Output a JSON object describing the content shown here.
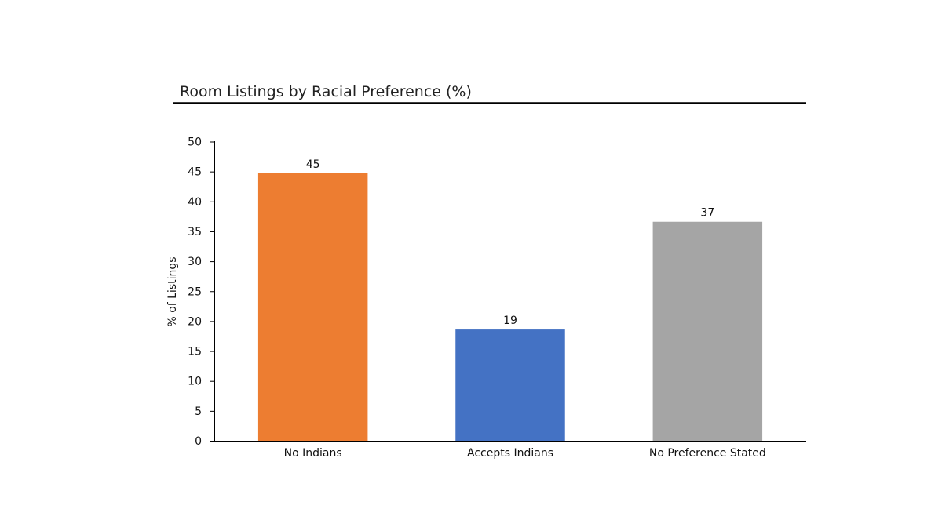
{
  "chart_data": {
    "type": "bar",
    "title": "Room Listings by Racial Preference (%)",
    "xlabel": "",
    "ylabel": "% of Listings",
    "categories": [
      "No Indians",
      "Accepts Indians",
      "No Preference Stated"
    ],
    "values": [
      44.7,
      18.6,
      36.6
    ],
    "data_labels": [
      "45",
      "19",
      "37"
    ],
    "colors": [
      "#ED7D31",
      "#4472C4",
      "#A5A5A5"
    ],
    "ylim": [
      0,
      50
    ],
    "yticks": [
      0,
      5,
      10,
      15,
      20,
      25,
      30,
      35,
      40,
      45,
      50
    ],
    "ytick_labels": [
      "0",
      "5",
      "10",
      "15",
      "20",
      "25",
      "30",
      "35",
      "40",
      "45",
      "50"
    ],
    "grid": false,
    "legend": "none"
  }
}
